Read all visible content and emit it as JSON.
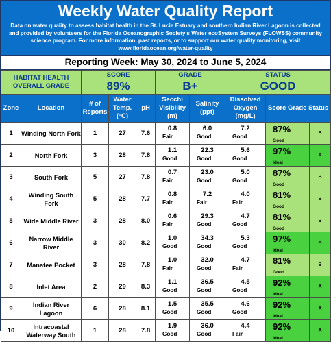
{
  "header": {
    "title": "Weekly Water Quality Report",
    "intro_text": "Data on water quality to assess habitat health in the St. Lucie Estuary and southern Indian River Lagoon is collected and provided by volunteers for the Florida Oceanographic Society's Water ecoSystem Surveys (FLOWSS) community science program.  For more information, past reports, or to support our water quality monitoring, visit ",
    "link_text": "www.floridaocean.org/water-quality"
  },
  "reporting_week": "Reporting Week: May 30, 2024 to June 5, 2024",
  "overall": {
    "label_line1": "HABITAT HEALTH",
    "label_line2": "OVERALL GRADE",
    "score_caption": "SCORE",
    "score_value": "89%",
    "grade_caption": "GRADE",
    "grade_value": "B+",
    "status_caption": "STATUS",
    "status_value": "GOOD"
  },
  "columns": {
    "zone": "Zone",
    "location": "Location",
    "reports": "# of Reports",
    "temp": "Water Temp. (°C)",
    "ph": "pH",
    "secchi": "Secchi Visibility (m)",
    "salinity": "Salinity (ppt)",
    "oxygen": "Dissolved Oxygen (mg/L)",
    "score_status": "Score   Grade Status"
  },
  "colors": {
    "header_blue": "#0b70c9",
    "good_green": "#a9e27a",
    "ideal_green": "#4ad13f"
  },
  "rows": [
    {
      "zone": "1",
      "location": "Winding North Fork",
      "reports": "1",
      "temp": "27",
      "ph": "7.6",
      "secchi": "0.8",
      "secchi_desc": "Fair",
      "salinity": "6.0",
      "salinity_desc": "Good",
      "oxygen": "7.2",
      "oxygen_desc": "Good",
      "score": "87%",
      "status": "Good",
      "grade": "B"
    },
    {
      "zone": "2",
      "location": "North Fork",
      "reports": "3",
      "temp": "28",
      "ph": "7.8",
      "secchi": "1.1",
      "secchi_desc": "Good",
      "salinity": "22.3",
      "salinity_desc": "Good",
      "oxygen": "5.6",
      "oxygen_desc": "Good",
      "score": "97%",
      "status": "Ideal",
      "grade": "A"
    },
    {
      "zone": "3",
      "location": "South Fork",
      "reports": "5",
      "temp": "27",
      "ph": "7.8",
      "secchi": "0.7",
      "secchi_desc": "Fair",
      "salinity": "23.0",
      "salinity_desc": "Good",
      "oxygen": "5.0",
      "oxygen_desc": "Good",
      "score": "87%",
      "status": "Good",
      "grade": "B"
    },
    {
      "zone": "4",
      "location": "Winding South Fork",
      "reports": "5",
      "temp": "28",
      "ph": "7.7",
      "secchi": "0.8",
      "secchi_desc": "Fair",
      "salinity": "7.2",
      "salinity_desc": "Fair",
      "oxygen": "4.0",
      "oxygen_desc": "Fair",
      "score": "81%",
      "status": "Good",
      "grade": "B"
    },
    {
      "zone": "5",
      "location": "Wide Middle River",
      "reports": "3",
      "temp": "28",
      "ph": "8.0",
      "secchi": "0.6",
      "secchi_desc": "Fair",
      "salinity": "29.3",
      "salinity_desc": "Good",
      "oxygen": "4.7",
      "oxygen_desc": "Good",
      "score": "81%",
      "status": "Good",
      "grade": "B"
    },
    {
      "zone": "6",
      "location": "Narrow Middle River",
      "reports": "3",
      "temp": "30",
      "ph": "8.2",
      "secchi": "1.0",
      "secchi_desc": "Good",
      "salinity": "34.3",
      "salinity_desc": "Good",
      "oxygen": "5.3",
      "oxygen_desc": "Good",
      "score": "97%",
      "status": "Ideal",
      "grade": "A"
    },
    {
      "zone": "7",
      "location": "Manatee Pocket",
      "reports": "3",
      "temp": "28",
      "ph": "7.8",
      "secchi": "1.0",
      "secchi_desc": "Fair",
      "salinity": "32.0",
      "salinity_desc": "Good",
      "oxygen": "4.7",
      "oxygen_desc": "Fair",
      "score": "81%",
      "status": "Good",
      "grade": "B"
    },
    {
      "zone": "8",
      "location": "Inlet Area",
      "reports": "2",
      "temp": "29",
      "ph": "8.3",
      "secchi": "1.1",
      "secchi_desc": "Good",
      "salinity": "36.5",
      "salinity_desc": "Good",
      "oxygen": "4.5",
      "oxygen_desc": "Good",
      "score": "92%",
      "status": "Ideal",
      "grade": "A"
    },
    {
      "zone": "9",
      "location": "Indian River Lagoon",
      "reports": "6",
      "temp": "28",
      "ph": "8.1",
      "secchi": "1.5",
      "secchi_desc": "Good",
      "salinity": "35.5",
      "salinity_desc": "Good",
      "oxygen": "4.6",
      "oxygen_desc": "Good",
      "score": "92%",
      "status": "Ideal",
      "grade": "A"
    },
    {
      "zone": "10",
      "location": "Intracoastal Waterway South",
      "reports": "1",
      "temp": "28",
      "ph": "7.8",
      "secchi": "1.9",
      "secchi_desc": "Good",
      "salinity": "36.0",
      "salinity_desc": "Good",
      "oxygen": "4.4",
      "oxygen_desc": "Fair",
      "score": "92%",
      "status": "Ideal",
      "grade": "A"
    }
  ]
}
